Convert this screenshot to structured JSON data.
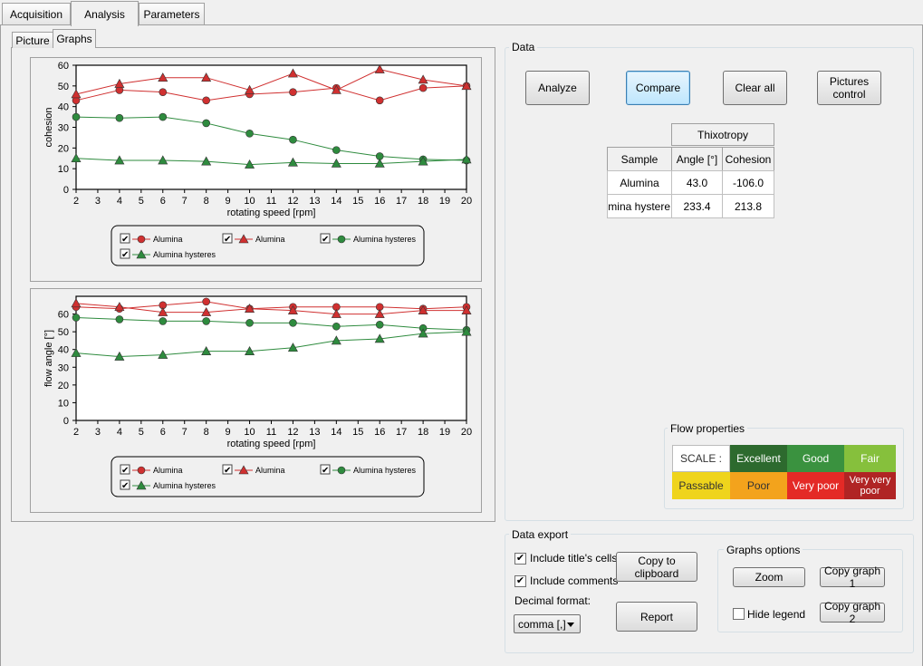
{
  "main_tabs": [
    {
      "label": "Acquisition"
    },
    {
      "label": "Analysis"
    },
    {
      "label": "Parameters"
    }
  ],
  "sub_tabs": [
    {
      "label": "Picture"
    },
    {
      "label": "Graphs"
    }
  ],
  "colors": {
    "red_series": "#d03030",
    "green_series": "#2e8b3e",
    "plot_bg": "#ffffff",
    "panel_bg": "#f0f0f0"
  },
  "chart_data": [
    {
      "type": "line",
      "title": "",
      "xlabel": "rotating speed [rpm]",
      "ylabel": "cohesion",
      "xlim": [
        2,
        20
      ],
      "ylim": [
        0,
        60
      ],
      "x_ticks": [
        2,
        3,
        4,
        5,
        6,
        7,
        8,
        9,
        10,
        11,
        12,
        13,
        14,
        15,
        16,
        17,
        18,
        19,
        20
      ],
      "y_ticks": [
        0,
        10,
        20,
        30,
        40,
        50,
        60
      ],
      "x": [
        2,
        4,
        6,
        8,
        10,
        12,
        14,
        16,
        18,
        20
      ],
      "series": [
        {
          "name": "Alumina",
          "marker": "circle",
          "color": "#d03030",
          "values": [
            43,
            48,
            47,
            43,
            46,
            47,
            49,
            43,
            49,
            50
          ]
        },
        {
          "name": "Alumina",
          "marker": "triangle",
          "color": "#d03030",
          "values": [
            46,
            51,
            54,
            54,
            48,
            56,
            48,
            58,
            53,
            50
          ]
        },
        {
          "name": "Alumina hysteres",
          "marker": "circle",
          "color": "#2e8b3e",
          "values": [
            35,
            34.5,
            35,
            32,
            27,
            24,
            19,
            16,
            14.5,
            14
          ]
        },
        {
          "name": "Alumina hysteres",
          "marker": "triangle",
          "color": "#2e8b3e",
          "values": [
            15,
            14,
            14,
            13.5,
            12,
            13,
            12.5,
            12.5,
            13.5,
            14.5
          ]
        }
      ]
    },
    {
      "type": "line",
      "title": "",
      "xlabel": "rotating speed [rpm]",
      "ylabel": "flow angle [°]",
      "xlim": [
        2,
        20
      ],
      "ylim": [
        0,
        70
      ],
      "x_ticks": [
        2,
        3,
        4,
        5,
        6,
        7,
        8,
        9,
        10,
        11,
        12,
        13,
        14,
        15,
        16,
        17,
        18,
        19,
        20
      ],
      "y_ticks": [
        0,
        10,
        20,
        30,
        40,
        50,
        60
      ],
      "x": [
        2,
        4,
        6,
        8,
        10,
        12,
        14,
        16,
        18,
        20
      ],
      "series": [
        {
          "name": "Alumina",
          "marker": "circle",
          "color": "#d03030",
          "values": [
            64,
            63,
            65,
            67,
            63,
            64,
            64,
            64,
            63,
            64
          ]
        },
        {
          "name": "Alumina",
          "marker": "triangle",
          "color": "#d03030",
          "values": [
            66,
            64,
            61,
            61,
            63,
            62,
            60,
            60,
            62,
            62
          ]
        },
        {
          "name": "Alumina hysteres",
          "marker": "circle",
          "color": "#2e8b3e",
          "values": [
            58,
            57,
            56,
            56,
            55,
            55,
            53,
            54,
            52,
            51
          ]
        },
        {
          "name": "Alumina hysteres",
          "marker": "triangle",
          "color": "#2e8b3e",
          "values": [
            38,
            36,
            37,
            39,
            39,
            41,
            45,
            46,
            49,
            50
          ]
        }
      ]
    }
  ],
  "data_group": {
    "title": "Data"
  },
  "buttons": {
    "analyze": "Analyze",
    "compare": "Compare",
    "clear_all": "Clear all",
    "pictures_control_1": "Pictures",
    "pictures_control_2": "control"
  },
  "table": {
    "group_header": "Thixotropy",
    "col_sample": "Sample",
    "col_angle": "Angle [°]",
    "col_cohesion": "Cohesion",
    "rows": [
      {
        "sample": "Alumina",
        "angle": "43.0",
        "cohesion": "-106.0"
      },
      {
        "sample": "Alumina hystere",
        "angle": "233.4",
        "cohesion": "213.8"
      }
    ]
  },
  "flow_properties": {
    "title": "Flow properties",
    "scale_label": "SCALE :",
    "levels": [
      {
        "label": "Excellent",
        "bg": "#2d6a2e",
        "fg": "#ffffff"
      },
      {
        "label": "Good",
        "bg": "#3a923f",
        "fg": "#ffffff"
      },
      {
        "label": "Fair",
        "bg": "#86c03c",
        "fg": "#ffffff"
      },
      {
        "label": "Passable",
        "bg": "#efd41c",
        "fg": "#333333"
      },
      {
        "label": "Poor",
        "bg": "#f3a31c",
        "fg": "#333333"
      },
      {
        "label": "Very poor",
        "bg": "#e42a26",
        "fg": "#ffffff"
      },
      {
        "label": "Very very poor",
        "bg": "#b02424",
        "fg": "#ffffff"
      }
    ]
  },
  "data_export": {
    "title": "Data export",
    "include_titles": "Include title's cells",
    "include_titles_checked": true,
    "include_comments": "Include comments",
    "include_comments_checked": true,
    "decimal_format_label": "Decimal format:",
    "decimal_format_value": "comma [,]",
    "copy_clipboard": "Copy to clipboard",
    "report": "Report"
  },
  "graphs_options": {
    "title": "Graphs options",
    "zoom": "Zoom",
    "copy_graph_1": "Copy graph 1",
    "copy_graph_2": "Copy graph 2",
    "hide_legend": "Hide legend",
    "hide_legend_checked": false
  }
}
